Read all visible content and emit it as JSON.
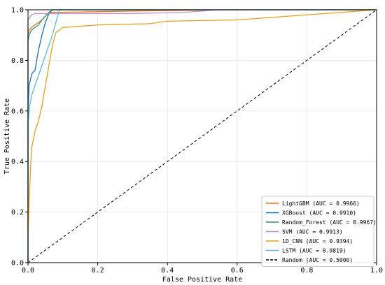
{
  "chart_data": {
    "type": "line",
    "title": "",
    "xlabel": "False Positive Rate",
    "ylabel": "True Positive Rate",
    "xlim": [
      0,
      1
    ],
    "ylim": [
      0,
      1
    ],
    "xticks": [
      "0.0",
      "0.2",
      "0.4",
      "0.6",
      "0.8",
      "1.0"
    ],
    "yticks": [
      "0.0",
      "0.2",
      "0.4",
      "0.6",
      "0.8",
      "1.0"
    ],
    "grid": true,
    "legend_position": "lower-right",
    "series": [
      {
        "name": "LightGBM (AUC = 0.9966)",
        "color": "#E8731A",
        "dash": "none",
        "points": [
          [
            0,
            0
          ],
          [
            0,
            0.9
          ],
          [
            0.003,
            0.92
          ],
          [
            0.01,
            0.93
          ],
          [
            0.02,
            0.94
          ],
          [
            0.03,
            0.95
          ],
          [
            0.04,
            0.96
          ],
          [
            0.05,
            0.975
          ],
          [
            0.06,
            0.985
          ],
          [
            0.07,
            0.99
          ],
          [
            0.1,
            0.99
          ],
          [
            0.3,
            0.995
          ],
          [
            0.6,
            1.0
          ],
          [
            1.0,
            1.0
          ]
        ]
      },
      {
        "name": "XGBoost (AUC = 0.9910)",
        "color": "#1F6FB4",
        "dash": "none",
        "points": [
          [
            0,
            0
          ],
          [
            0,
            0.6
          ],
          [
            0.003,
            0.7
          ],
          [
            0.008,
            0.73
          ],
          [
            0.012,
            0.75
          ],
          [
            0.02,
            0.76
          ],
          [
            0.025,
            0.8
          ],
          [
            0.03,
            0.84
          ],
          [
            0.04,
            0.9
          ],
          [
            0.05,
            0.95
          ],
          [
            0.06,
            0.985
          ],
          [
            0.07,
            1.0
          ],
          [
            1.0,
            1.0
          ]
        ]
      },
      {
        "name": "Random_Forest (AUC = 0.9967)",
        "color": "#2C9A6A",
        "dash": "none",
        "points": [
          [
            0,
            0
          ],
          [
            0,
            0.87
          ],
          [
            0.003,
            0.9
          ],
          [
            0.01,
            0.92
          ],
          [
            0.02,
            0.93
          ],
          [
            0.03,
            0.94
          ],
          [
            0.04,
            0.96
          ],
          [
            0.05,
            0.975
          ],
          [
            0.06,
            0.99
          ],
          [
            0.07,
            1.0
          ],
          [
            1.0,
            1.0
          ]
        ]
      },
      {
        "name": "SVM (AUC = 0.9913)",
        "color": "#C58FD0",
        "dash": "none",
        "points": [
          [
            0,
            0
          ],
          [
            0,
            0.96
          ],
          [
            0.01,
            0.98
          ],
          [
            0.02,
            0.985
          ],
          [
            0.3,
            0.985
          ],
          [
            0.45,
            0.99
          ],
          [
            0.55,
            1.0
          ],
          [
            1.0,
            1.0
          ]
        ]
      },
      {
        "name": "1D_CNN (AUC = 0.9394)",
        "color": "#E5A11C",
        "dash": "none",
        "points": [
          [
            0,
            0
          ],
          [
            0,
            0.1
          ],
          [
            0.005,
            0.3
          ],
          [
            0.01,
            0.45
          ],
          [
            0.02,
            0.52
          ],
          [
            0.03,
            0.56
          ],
          [
            0.04,
            0.62
          ],
          [
            0.05,
            0.7
          ],
          [
            0.06,
            0.78
          ],
          [
            0.07,
            0.86
          ],
          [
            0.08,
            0.91
          ],
          [
            0.1,
            0.93
          ],
          [
            0.2,
            0.94
          ],
          [
            0.35,
            0.945
          ],
          [
            0.4,
            0.955
          ],
          [
            0.6,
            0.96
          ],
          [
            0.7,
            0.97
          ],
          [
            0.8,
            0.98
          ],
          [
            0.9,
            0.99
          ],
          [
            1.0,
            1.0
          ]
        ]
      },
      {
        "name": "LSTM (AUC = 0.9819)",
        "color": "#5BB7E5",
        "dash": "none",
        "points": [
          [
            0,
            0
          ],
          [
            0,
            0.55
          ],
          [
            0.005,
            0.62
          ],
          [
            0.01,
            0.66
          ],
          [
            0.02,
            0.7
          ],
          [
            0.03,
            0.74
          ],
          [
            0.04,
            0.78
          ],
          [
            0.05,
            0.82
          ],
          [
            0.06,
            0.86
          ],
          [
            0.07,
            0.9
          ],
          [
            0.08,
            0.95
          ],
          [
            0.09,
            1.0
          ],
          [
            1.0,
            1.0
          ]
        ]
      },
      {
        "name": "Random (AUC = 0.5000)",
        "color": "#000000",
        "dash": "dashed",
        "points": [
          [
            0,
            0
          ],
          [
            1,
            1
          ]
        ]
      }
    ]
  }
}
